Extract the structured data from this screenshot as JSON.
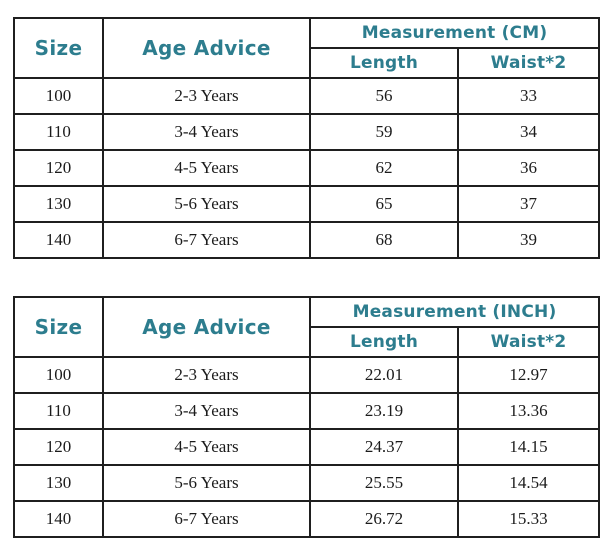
{
  "colors": {
    "header_text": "#2d7d8e",
    "body_text": "#1b1b1b",
    "border": "#1f1f1f",
    "background": "#ffffff"
  },
  "chart_data": [
    {
      "type": "table",
      "title": "Measurement (CM)",
      "columns": [
        "Size",
        "Age Advice",
        "Length",
        "Waist*2"
      ],
      "rows": [
        [
          "100",
          "2-3 Years",
          "56",
          "33"
        ],
        [
          "110",
          "3-4 Years",
          "59",
          "34"
        ],
        [
          "120",
          "4-5 Years",
          "62",
          "36"
        ],
        [
          "130",
          "5-6 Years",
          "65",
          "37"
        ],
        [
          "140",
          "6-7 Years",
          "68",
          "39"
        ]
      ]
    },
    {
      "type": "table",
      "title": "Measurement (INCH)",
      "columns": [
        "Size",
        "Age Advice",
        "Length",
        "Waist*2"
      ],
      "rows": [
        [
          "100",
          "2-3 Years",
          "22.01",
          "12.97"
        ],
        [
          "110",
          "3-4 Years",
          "23.19",
          "13.36"
        ],
        [
          "120",
          "4-5 Years",
          "24.37",
          "14.15"
        ],
        [
          "130",
          "5-6 Years",
          "25.55",
          "14.54"
        ],
        [
          "140",
          "6-7 Years",
          "26.72",
          "15.33"
        ]
      ]
    }
  ]
}
